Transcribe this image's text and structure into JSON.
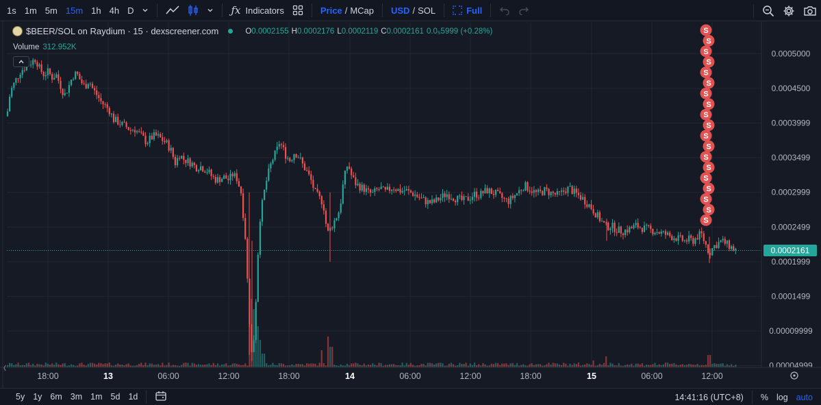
{
  "toolbar": {
    "intervals": [
      "1s",
      "1m",
      "5m",
      "15m",
      "1h",
      "4h",
      "D"
    ],
    "active_interval": "15m",
    "indicators_label": "Indicators",
    "price_label": "Price",
    "mcap_label": "MCap",
    "usd_label": "USD",
    "sol_label": "SOL",
    "full_label": "Full",
    "slash": "/"
  },
  "legend": {
    "symbol_title": "$BEER/SOL on Raydium · 15 · dexscreener.com",
    "o_label": "O",
    "o_value": "0.0002155",
    "h_label": "H",
    "h_value": "0.0002176",
    "l_label": "L",
    "l_value": "0.0002119",
    "c_label": "C",
    "c_value": "0.0002161",
    "change": "0.0₅5999 (+0.28%)",
    "volume_label": "Volume",
    "volume_value": "312.952K"
  },
  "colors": {
    "up": "#26a69a",
    "down": "#ef5350",
    "background": "#161a25",
    "grid": "#232632",
    "accent": "#2962ff",
    "marker": "#e05352"
  },
  "chart_data": {
    "type": "candlestick",
    "y_axis_ticks": [
      "0.0005000",
      "0.0004500",
      "0.0003999",
      "0.0003499",
      "0.0002999",
      "0.0002499",
      "0.0001999",
      "0.0001499",
      "0.00009999",
      "0.00004999"
    ],
    "y_tick_values": [
      0.0005,
      0.00045,
      0.0004,
      0.00035,
      0.0003,
      0.00025,
      0.0002,
      0.00015,
      0.0001,
      5e-05
    ],
    "ylim": [
      4.75e-05,
      0.000545
    ],
    "x_axis_ticks": [
      "18:00",
      "13",
      "06:00",
      "12:00",
      "18:00",
      "14",
      "06:00",
      "12:00",
      "18:00",
      "15",
      "06:00",
      "12:00"
    ],
    "x_tick_positions": [
      70,
      158,
      246,
      334,
      422,
      511,
      599,
      687,
      775,
      864,
      952,
      1040
    ],
    "bold_ticks": [
      "13",
      "14",
      "15"
    ],
    "last_price": "0.0002161",
    "last_price_value": 0.0002161,
    "timezone": "14:41:16 (UTC+8)",
    "marker_label": "S",
    "marker_count": 19,
    "close_path": [
      [
        10,
        0.00041
      ],
      [
        15,
        0.000445
      ],
      [
        22,
        0.00046
      ],
      [
        30,
        0.000475
      ],
      [
        38,
        0.000482
      ],
      [
        46,
        0.000488
      ],
      [
        52,
        0.000493
      ],
      [
        58,
        0.000478
      ],
      [
        64,
        0.00047
      ],
      [
        70,
        0.000474
      ],
      [
        76,
        0.000466
      ],
      [
        82,
        0.00047
      ],
      [
        88,
        0.000455
      ],
      [
        94,
        0.00044
      ],
      [
        100,
        0.000452
      ],
      [
        106,
        0.000468
      ],
      [
        112,
        0.000472
      ],
      [
        118,
        0.00046
      ],
      [
        124,
        0.000452
      ],
      [
        130,
        0.000462
      ],
      [
        136,
        0.000448
      ],
      [
        142,
        0.00044
      ],
      [
        148,
        0.00043
      ],
      [
        154,
        0.000425
      ],
      [
        160,
        0.000418
      ],
      [
        166,
        0.000405
      ],
      [
        172,
        0.000402
      ],
      [
        178,
        0.000398
      ],
      [
        184,
        0.000395
      ],
      [
        190,
        0.00039
      ],
      [
        196,
        0.000392
      ],
      [
        202,
        0.000386
      ],
      [
        208,
        0.00038
      ],
      [
        214,
        0.000372
      ],
      [
        220,
        0.000378
      ],
      [
        226,
        0.000382
      ],
      [
        232,
        0.00038
      ],
      [
        238,
        0.000375
      ],
      [
        244,
        0.00037
      ],
      [
        250,
        0.00036
      ],
      [
        256,
        0.000342
      ],
      [
        262,
        0.000355
      ],
      [
        268,
        0.000348
      ],
      [
        274,
        0.000345
      ],
      [
        280,
        0.000342
      ],
      [
        286,
        0.000336
      ],
      [
        292,
        0.000338
      ],
      [
        298,
        0.000334
      ],
      [
        304,
        0.00033
      ],
      [
        310,
        0.000322
      ],
      [
        316,
        0.000318
      ],
      [
        322,
        0.00032
      ],
      [
        328,
        0.000322
      ],
      [
        334,
        0.000318
      ],
      [
        340,
        0.000326
      ],
      [
        346,
        0.00032
      ],
      [
        352,
        0.0003
      ],
      [
        358,
        0.00024
      ],
      [
        364,
        0.00012
      ],
      [
        368,
        6e-05
      ],
      [
        372,
        0.000105
      ],
      [
        376,
        0.0002
      ],
      [
        380,
        0.000265
      ],
      [
        384,
        0.00029
      ],
      [
        388,
        0.000312
      ],
      [
        392,
        0.000328
      ],
      [
        396,
        0.000342
      ],
      [
        400,
        0.000352
      ],
      [
        404,
        0.00036
      ],
      [
        408,
        0.000372
      ],
      [
        412,
        0.000366
      ],
      [
        418,
        0.000352
      ],
      [
        424,
        0.000346
      ],
      [
        430,
        0.000358
      ],
      [
        436,
        0.000352
      ],
      [
        442,
        0.00034
      ],
      [
        448,
        0.00033
      ],
      [
        454,
        0.000318
      ],
      [
        460,
        0.0003
      ],
      [
        466,
        0.000292
      ],
      [
        472,
        0.000285
      ],
      [
        478,
        0.00024
      ],
      [
        484,
        0.00025
      ],
      [
        490,
        0.000262
      ],
      [
        496,
        0.000275
      ],
      [
        502,
        0.000318
      ],
      [
        508,
        0.000342
      ],
      [
        514,
        0.000322
      ],
      [
        520,
        0.000312
      ],
      [
        526,
        0.000308
      ],
      [
        532,
        0.000305
      ],
      [
        538,
        0.0003
      ],
      [
        544,
        0.000298
      ],
      [
        550,
        0.000303
      ],
      [
        556,
        0.000306
      ],
      [
        562,
        0.0003
      ],
      [
        568,
        0.000304
      ],
      [
        574,
        0.000308
      ],
      [
        580,
        0.000304
      ],
      [
        586,
        0.000302
      ],
      [
        592,
        0.000303
      ],
      [
        598,
        0.0003
      ],
      [
        604,
        0.000298
      ],
      [
        610,
        0.000294
      ],
      [
        616,
        0.00029
      ],
      [
        622,
        0.000287
      ],
      [
        628,
        0.000285
      ],
      [
        634,
        0.000286
      ],
      [
        640,
        0.00029
      ],
      [
        646,
        0.000294
      ],
      [
        652,
        0.000298
      ],
      [
        658,
        0.000295
      ],
      [
        664,
        0.000292
      ],
      [
        670,
        0.00029
      ],
      [
        676,
        0.000288
      ],
      [
        682,
        0.00029
      ],
      [
        688,
        0.000294
      ],
      [
        694,
        0.000298
      ],
      [
        700,
        0.000296
      ],
      [
        706,
        0.0003
      ],
      [
        712,
        0.000303
      ],
      [
        718,
        0.0003
      ],
      [
        724,
        0.000298
      ],
      [
        730,
        0.000294
      ],
      [
        736,
        0.00029
      ],
      [
        742,
        0.000287
      ],
      [
        748,
        0.000292
      ],
      [
        754,
        0.000298
      ],
      [
        760,
        0.000304
      ],
      [
        766,
        0.00031
      ],
      [
        772,
        0.000306
      ],
      [
        778,
        0.000302
      ],
      [
        784,
        0.000298
      ],
      [
        790,
        0.0003
      ],
      [
        796,
        0.000303
      ],
      [
        802,
        0.0003
      ],
      [
        808,
        0.000298
      ],
      [
        814,
        0.000296
      ],
      [
        820,
        0.000299
      ],
      [
        826,
        0.000304
      ],
      [
        832,
        0.000306
      ],
      [
        838,
        0.0003
      ],
      [
        844,
        0.000296
      ],
      [
        850,
        0.000292
      ],
      [
        856,
        0.000286
      ],
      [
        862,
        0.00028
      ],
      [
        868,
        0.000272
      ],
      [
        874,
        0.000264
      ],
      [
        880,
        0.000256
      ],
      [
        886,
        0.00025
      ],
      [
        892,
        0.000252
      ],
      [
        898,
        0.000248
      ],
      [
        904,
        0.000245
      ],
      [
        910,
        0.000244
      ],
      [
        916,
        0.000246
      ],
      [
        922,
        0.000248
      ],
      [
        928,
        0.000252
      ],
      [
        934,
        0.00025
      ],
      [
        940,
        0.000248
      ],
      [
        946,
        0.000247
      ],
      [
        952,
        0.000245
      ],
      [
        958,
        0.000244
      ],
      [
        964,
        0.000242
      ],
      [
        970,
        0.00024
      ],
      [
        976,
        0.000238
      ],
      [
        982,
        0.000236
      ],
      [
        988,
        0.000234
      ],
      [
        994,
        0.000232
      ],
      [
        1000,
        0.00023
      ],
      [
        1006,
        0.000232
      ],
      [
        1012,
        0.00023
      ],
      [
        1018,
        0.000236
      ],
      [
        1024,
        0.00024
      ],
      [
        1030,
        0.000226
      ],
      [
        1036,
        0.000212
      ],
      [
        1042,
        0.000222
      ],
      [
        1048,
        0.000226
      ],
      [
        1054,
        0.00023
      ],
      [
        1060,
        0.000226
      ],
      [
        1066,
        0.000222
      ],
      [
        1072,
        0.000218
      ],
      [
        1076,
        0.000216
      ]
    ],
    "volume_spikes": [
      [
        364,
        80
      ],
      [
        368,
        100
      ],
      [
        372,
        85
      ],
      [
        376,
        60
      ],
      [
        380,
        40
      ],
      [
        384,
        20
      ],
      [
        480,
        45
      ],
      [
        484,
        30
      ],
      [
        470,
        25
      ],
      [
        1036,
        18
      ],
      [
        886,
        16
      ],
      [
        866,
        10
      ]
    ]
  },
  "bottombar": {
    "ranges": [
      "5y",
      "1y",
      "6m",
      "3m",
      "1m",
      "5d",
      "1d"
    ],
    "percent_label": "%",
    "log_label": "log",
    "auto_label": "auto"
  }
}
